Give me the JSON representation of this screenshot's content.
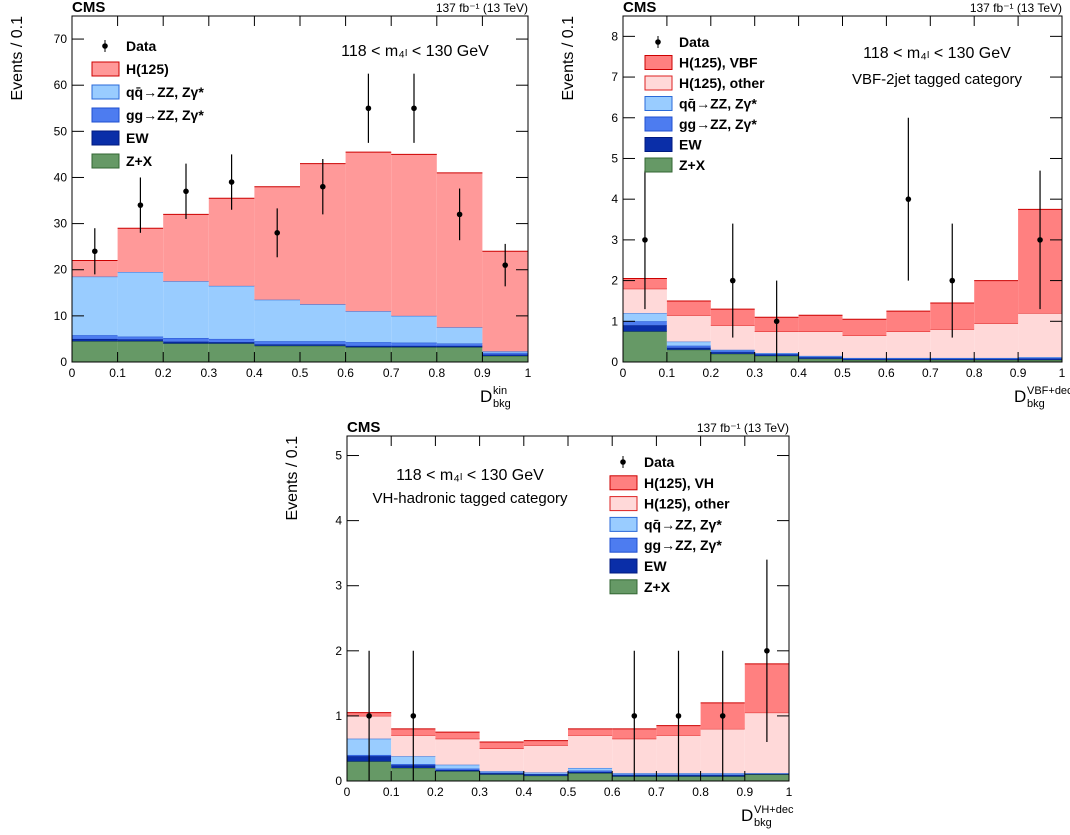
{
  "chart_data": [
    {
      "type": "stacked_histogram",
      "experiment": "CMS",
      "lumi": "137 fb⁻¹ (13 TeV)",
      "y_label": "Events / 0.1",
      "x_label": "D",
      "x_label_sub": "bkg",
      "x_label_sup": "kin",
      "annotations": [
        "118 < m₄ₗ < 130 GeV"
      ],
      "legend": "upper left",
      "bins": [
        0,
        0.1,
        0.2,
        0.3,
        0.4,
        0.5,
        0.6,
        0.7,
        0.8,
        0.9,
        1
      ],
      "xlim": [
        0,
        1
      ],
      "xticks": [
        0,
        0.1,
        0.2,
        0.3,
        0.4,
        0.5,
        0.6,
        0.7,
        0.8,
        0.9,
        1
      ],
      "ylim": [
        0,
        75
      ],
      "yticks": [
        0,
        10,
        20,
        30,
        40,
        50,
        60,
        70
      ],
      "series": [
        {
          "name": "Z+X",
          "color": "#669966",
          "values": [
            4.5,
            4.5,
            4,
            4,
            3.5,
            3.5,
            3.2,
            3.2,
            3.2,
            1.3
          ]
        },
        {
          "name": "EW",
          "color": "#0a2ea8",
          "values": [
            0.5,
            0.4,
            0.4,
            0.3,
            0.3,
            0.3,
            0.3,
            0.3,
            0.3,
            0.3
          ]
        },
        {
          "name": "gg→ZZ, Zγ*",
          "color": "#4d7cf0",
          "values": [
            0.8,
            0.6,
            0.8,
            0.7,
            0.7,
            0.7,
            0.8,
            0.7,
            0.5,
            0.4
          ]
        },
        {
          "name": "qq̄→ZZ, Zγ*",
          "color": "#99ccff",
          "values": [
            12.7,
            14,
            12.3,
            11.5,
            9,
            8,
            6.7,
            5.8,
            3.5,
            0.3
          ]
        },
        {
          "name": "H(125)",
          "color": "#ff9999",
          "values": [
            3.5,
            9.5,
            14.5,
            19,
            24.5,
            30.5,
            34.5,
            35,
            33.5,
            21.7
          ]
        }
      ],
      "data": {
        "name": "Data",
        "color": "#000000",
        "values": [
          24,
          34,
          37,
          39,
          28,
          38,
          55,
          55,
          32,
          21
        ],
        "errors": [
          5,
          6,
          6,
          6,
          5.3,
          6,
          7.5,
          7.5,
          5.6,
          4.6
        ]
      }
    },
    {
      "type": "stacked_histogram",
      "experiment": "CMS",
      "lumi": "137 fb⁻¹ (13 TeV)",
      "y_label": "Events / 0.1",
      "x_label": "D",
      "x_label_sub": "bkg",
      "x_label_sup": "VBF+dec",
      "annotations": [
        "118 < m₄ₗ < 130 GeV",
        "VBF-2jet tagged category"
      ],
      "legend": "upper left",
      "bins": [
        0,
        0.1,
        0.2,
        0.3,
        0.4,
        0.5,
        0.6,
        0.7,
        0.8,
        0.9,
        1
      ],
      "xlim": [
        0,
        1
      ],
      "xticks": [
        0,
        0.1,
        0.2,
        0.3,
        0.4,
        0.5,
        0.6,
        0.7,
        0.8,
        0.9,
        1
      ],
      "ylim": [
        0,
        8.5
      ],
      "yticks": [
        0,
        1,
        2,
        3,
        4,
        5,
        6,
        7,
        8
      ],
      "series": [
        {
          "name": "Z+X",
          "color": "#669966",
          "values": [
            0.75,
            0.3,
            0.2,
            0.15,
            0.08,
            0.05,
            0.05,
            0.05,
            0.05,
            0.05
          ]
        },
        {
          "name": "EW",
          "color": "#0a2ea8",
          "values": [
            0.15,
            0.05,
            0.04,
            0.03,
            0.03,
            0.02,
            0.02,
            0.02,
            0.02,
            0.03
          ]
        },
        {
          "name": "gg→ZZ, Zγ*",
          "color": "#4d7cf0",
          "values": [
            0.1,
            0.05,
            0.04,
            0.02,
            0.02,
            0.02,
            0.02,
            0.02,
            0.02,
            0.02
          ]
        },
        {
          "name": "qq̄→ZZ, Zγ*",
          "color": "#99ccff",
          "values": [
            0.2,
            0.1,
            0.02,
            0.02,
            0.02,
            0.01,
            0.01,
            0.01,
            0.01,
            0.02
          ]
        },
        {
          "name": "H(125), other",
          "color": "#ffd9d9",
          "values": [
            0.6,
            0.65,
            0.6,
            0.53,
            0.6,
            0.55,
            0.65,
            0.7,
            0.85,
            1.08
          ]
        },
        {
          "name": "H(125), VBF",
          "color": "#ff8080",
          "values": [
            0.25,
            0.35,
            0.4,
            0.35,
            0.4,
            0.4,
            0.5,
            0.65,
            1.05,
            2.55
          ]
        }
      ],
      "data": {
        "name": "Data",
        "color": "#000000",
        "values": [
          3,
          null,
          2,
          1,
          null,
          null,
          4,
          2,
          null,
          3
        ],
        "errors": [
          1.7,
          null,
          1.4,
          1,
          null,
          null,
          2,
          1.4,
          null,
          1.7
        ]
      }
    },
    {
      "type": "stacked_histogram",
      "experiment": "CMS",
      "lumi": "137 fb⁻¹ (13 TeV)",
      "y_label": "Events / 0.1",
      "x_label": "D",
      "x_label_sub": "bkg",
      "x_label_sup": "VH+dec",
      "annotations": [
        "118 < m₄ₗ < 130 GeV",
        "VH-hadronic tagged category"
      ],
      "legend": "upper right",
      "bins": [
        0,
        0.1,
        0.2,
        0.3,
        0.4,
        0.5,
        0.6,
        0.7,
        0.8,
        0.9,
        1
      ],
      "xlim": [
        0,
        1
      ],
      "xticks": [
        0,
        0.1,
        0.2,
        0.3,
        0.4,
        0.5,
        0.6,
        0.7,
        0.8,
        0.9,
        1
      ],
      "ylim": [
        0,
        5.3
      ],
      "yticks": [
        0,
        1,
        2,
        3,
        4,
        5
      ],
      "series": [
        {
          "name": "Z+X",
          "color": "#669966",
          "values": [
            0.3,
            0.2,
            0.15,
            0.1,
            0.08,
            0.12,
            0.07,
            0.07,
            0.07,
            0.1
          ]
        },
        {
          "name": "EW",
          "color": "#0a2ea8",
          "values": [
            0.08,
            0.04,
            0.02,
            0.02,
            0.02,
            0.02,
            0.02,
            0.02,
            0.02,
            0.01
          ]
        },
        {
          "name": "gg→ZZ, Zγ*",
          "color": "#4d7cf0",
          "values": [
            0.02,
            0.02,
            0.02,
            0.01,
            0.01,
            0.02,
            0.01,
            0.01,
            0.01,
            0.01
          ]
        },
        {
          "name": "qq̄→ZZ, Zγ*",
          "color": "#99ccff",
          "values": [
            0.25,
            0.12,
            0.06,
            0.02,
            0.02,
            0.04,
            0.02,
            0.02,
            0.02,
            0
          ]
        },
        {
          "name": "H(125), other",
          "color": "#ffd9d9",
          "values": [
            0.35,
            0.32,
            0.4,
            0.35,
            0.42,
            0.5,
            0.53,
            0.58,
            0.68,
            0.93
          ]
        },
        {
          "name": "H(125), VH",
          "color": "#ff8080",
          "values": [
            0.05,
            0.1,
            0.1,
            0.1,
            0.07,
            0.1,
            0.15,
            0.15,
            0.4,
            0.75
          ]
        }
      ],
      "data": {
        "name": "Data",
        "color": "#000000",
        "values": [
          1,
          1,
          null,
          null,
          null,
          null,
          1,
          1,
          1,
          2
        ],
        "errors": [
          1,
          1,
          null,
          null,
          null,
          null,
          1,
          1,
          1,
          1.4
        ]
      }
    }
  ]
}
